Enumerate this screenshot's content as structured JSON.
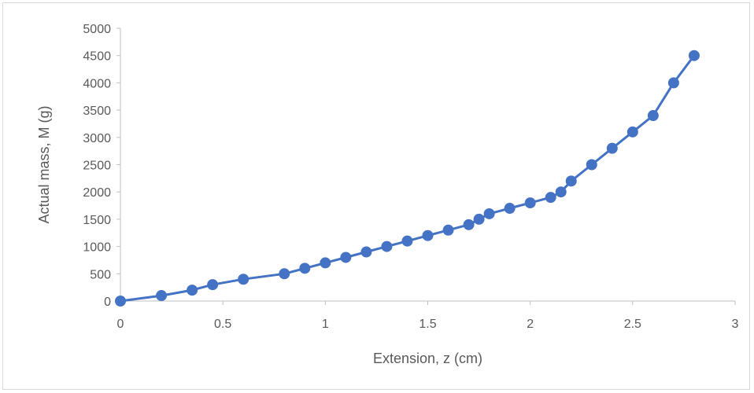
{
  "chart_data": {
    "type": "line",
    "title": "",
    "xlabel": "Extension, z (cm)",
    "ylabel": "Actual mass, M (g)",
    "xlim": [
      0,
      3
    ],
    "ylim": [
      0,
      5000
    ],
    "xticks": [
      0,
      0.5,
      1,
      1.5,
      2,
      2.5,
      3
    ],
    "yticks": [
      0,
      500,
      1000,
      1500,
      2000,
      2500,
      3000,
      3500,
      4000,
      4500,
      5000
    ],
    "xtick_labels": [
      "0",
      "0.5",
      "1",
      "1.5",
      "2",
      "2.5",
      "3"
    ],
    "ytick_labels": [
      "0",
      "500",
      "1000",
      "1500",
      "2000",
      "2500",
      "3000",
      "3500",
      "4000",
      "4500",
      "5000"
    ],
    "grid": false,
    "legend": "none",
    "series": [
      {
        "color": "#4472c4",
        "marker": "circle",
        "x": [
          0,
          0.2,
          0.35,
          0.45,
          0.6,
          0.8,
          0.9,
          1.0,
          1.1,
          1.2,
          1.3,
          1.4,
          1.5,
          1.6,
          1.7,
          1.75,
          1.8,
          1.9,
          2.0,
          2.1,
          2.15,
          2.2,
          2.3,
          2.4,
          2.5,
          2.6,
          2.7,
          2.8
        ],
        "y": [
          0,
          100,
          200,
          300,
          400,
          500,
          600,
          700,
          800,
          900,
          1000,
          1100,
          1200,
          1300,
          1400,
          1500,
          1600,
          1700,
          1800,
          1900,
          2000,
          2200,
          2500,
          2800,
          3100,
          3400,
          4000,
          4500
        ]
      }
    ]
  }
}
